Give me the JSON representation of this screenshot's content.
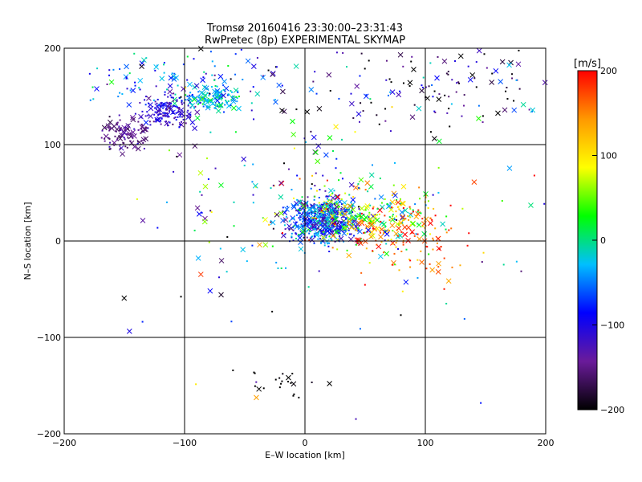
{
  "chart_data": {
    "type": "scatter",
    "title": "Tromsø 20160416 23:30:00–23:31:43",
    "subtitle": "RwPretec (8p) EXPERIMENTAL SKYMAP",
    "xlabel": "E–W location [km]",
    "ylabel": "N–S location [km]",
    "xlim": [
      -200,
      200
    ],
    "ylim": [
      -200,
      200
    ],
    "xticks": [
      -200,
      -100,
      0,
      100,
      200
    ],
    "yticks": [
      -200,
      -100,
      0,
      100,
      200
    ],
    "grid": true,
    "colorbar": {
      "label": "[m/s]",
      "range": [
        -200,
        200
      ],
      "ticks": [
        200,
        100,
        0,
        -100,
        -200
      ],
      "colors": [
        "#000000",
        "#6a1b9a",
        "#0000ff",
        "#00bfff",
        "#00ff00",
        "#ffff00",
        "#ff9900",
        "#ff0000"
      ]
    },
    "marker_types": [
      "dot",
      "cross"
    ],
    "clusters": [
      {
        "center": [
          15,
          22
        ],
        "spread": [
          14,
          11
        ],
        "count": 520,
        "velocity_mean": -75,
        "velocity_spread": 45
      },
      {
        "center": [
          55,
          25
        ],
        "spread": [
          28,
          18
        ],
        "count": 260,
        "velocity_mean": 60,
        "velocity_spread": 80
      },
      {
        "center": [
          90,
          5
        ],
        "spread": [
          25,
          20
        ],
        "count": 110,
        "velocity_mean": 160,
        "velocity_spread": 40
      },
      {
        "center": [
          -75,
          148
        ],
        "spread": [
          12,
          6
        ],
        "count": 130,
        "velocity_mean": -25,
        "velocity_spread": 25
      },
      {
        "center": [
          -115,
          135
        ],
        "spread": [
          12,
          9
        ],
        "count": 150,
        "velocity_mean": -110,
        "velocity_spread": 20
      },
      {
        "center": [
          -150,
          112
        ],
        "spread": [
          10,
          8
        ],
        "count": 100,
        "velocity_mean": -150,
        "velocity_spread": 15
      },
      {
        "center": [
          -100,
          168
        ],
        "spread": [
          45,
          14
        ],
        "count": 110,
        "velocity_mean": -60,
        "velocity_spread": 55
      },
      {
        "center": [
          110,
          160
        ],
        "spread": [
          65,
          28
        ],
        "count": 160,
        "velocity_mean": -150,
        "velocity_spread": 70
      },
      {
        "center": [
          -10,
          55
        ],
        "spread": [
          45,
          40
        ],
        "count": 120,
        "velocity_mean": -40,
        "velocity_spread": 90
      },
      {
        "center": [
          -20,
          -145
        ],
        "spread": [
          15,
          8
        ],
        "count": 20,
        "velocity_mean": -200,
        "velocity_spread": 10
      },
      {
        "center": [
          0,
          0
        ],
        "spread": [
          130,
          120
        ],
        "count": 90,
        "velocity_mean": -40,
        "velocity_spread": 110
      }
    ]
  }
}
